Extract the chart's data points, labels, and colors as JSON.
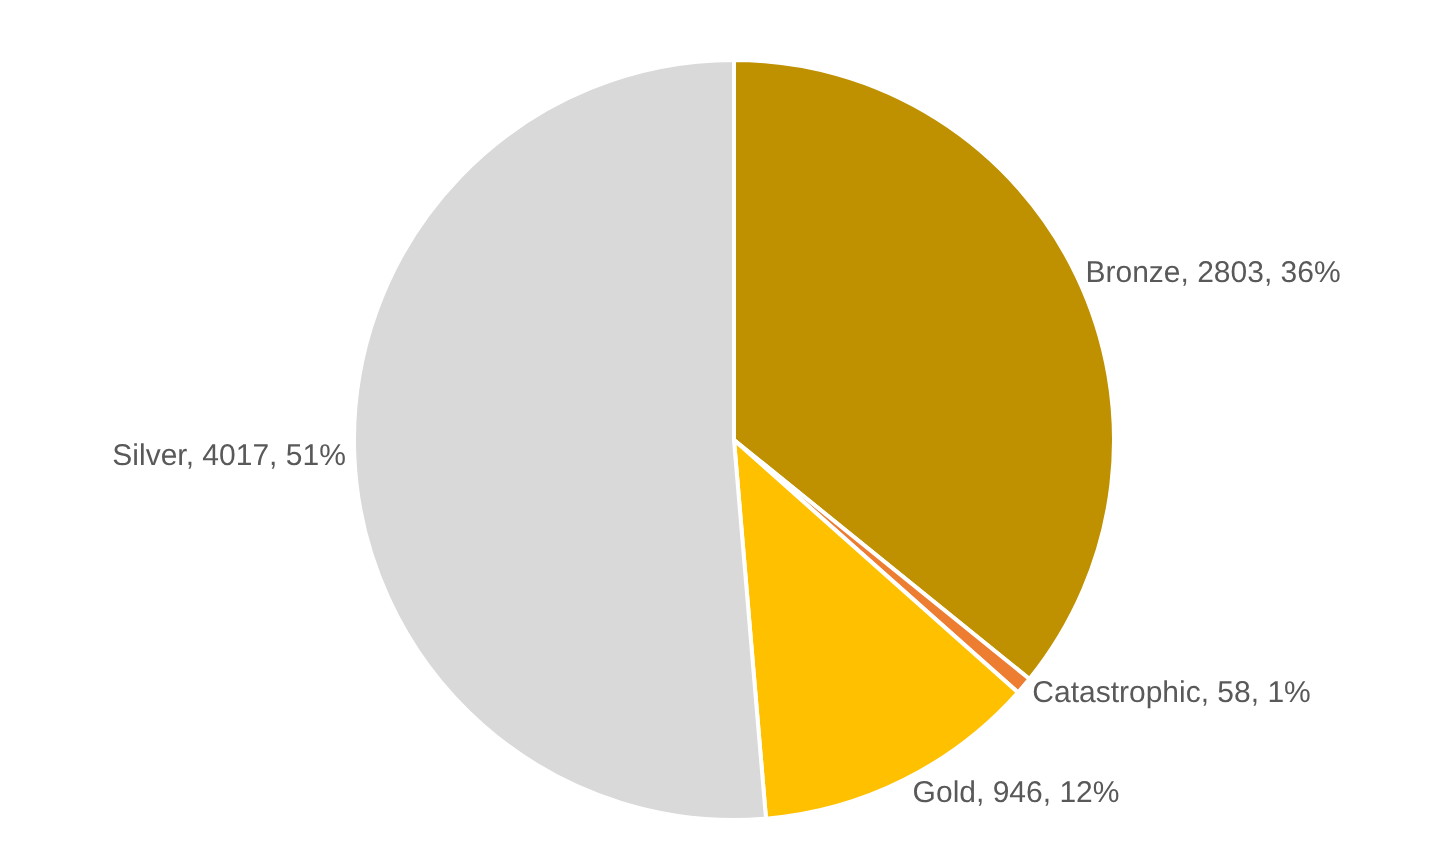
{
  "chart_data": {
    "type": "pie",
    "categories": [
      "Bronze",
      "Catastrophic",
      "Gold",
      "Silver"
    ],
    "values": [
      2803,
      58,
      946,
      4017
    ],
    "colors": [
      "#bf9000",
      "#ed7d31",
      "#ffc000",
      "#d9d9d9"
    ],
    "value_labels": [
      "2803, 36%",
      "58, 1%",
      "946, 12%",
      "4017, 51%"
    ]
  }
}
